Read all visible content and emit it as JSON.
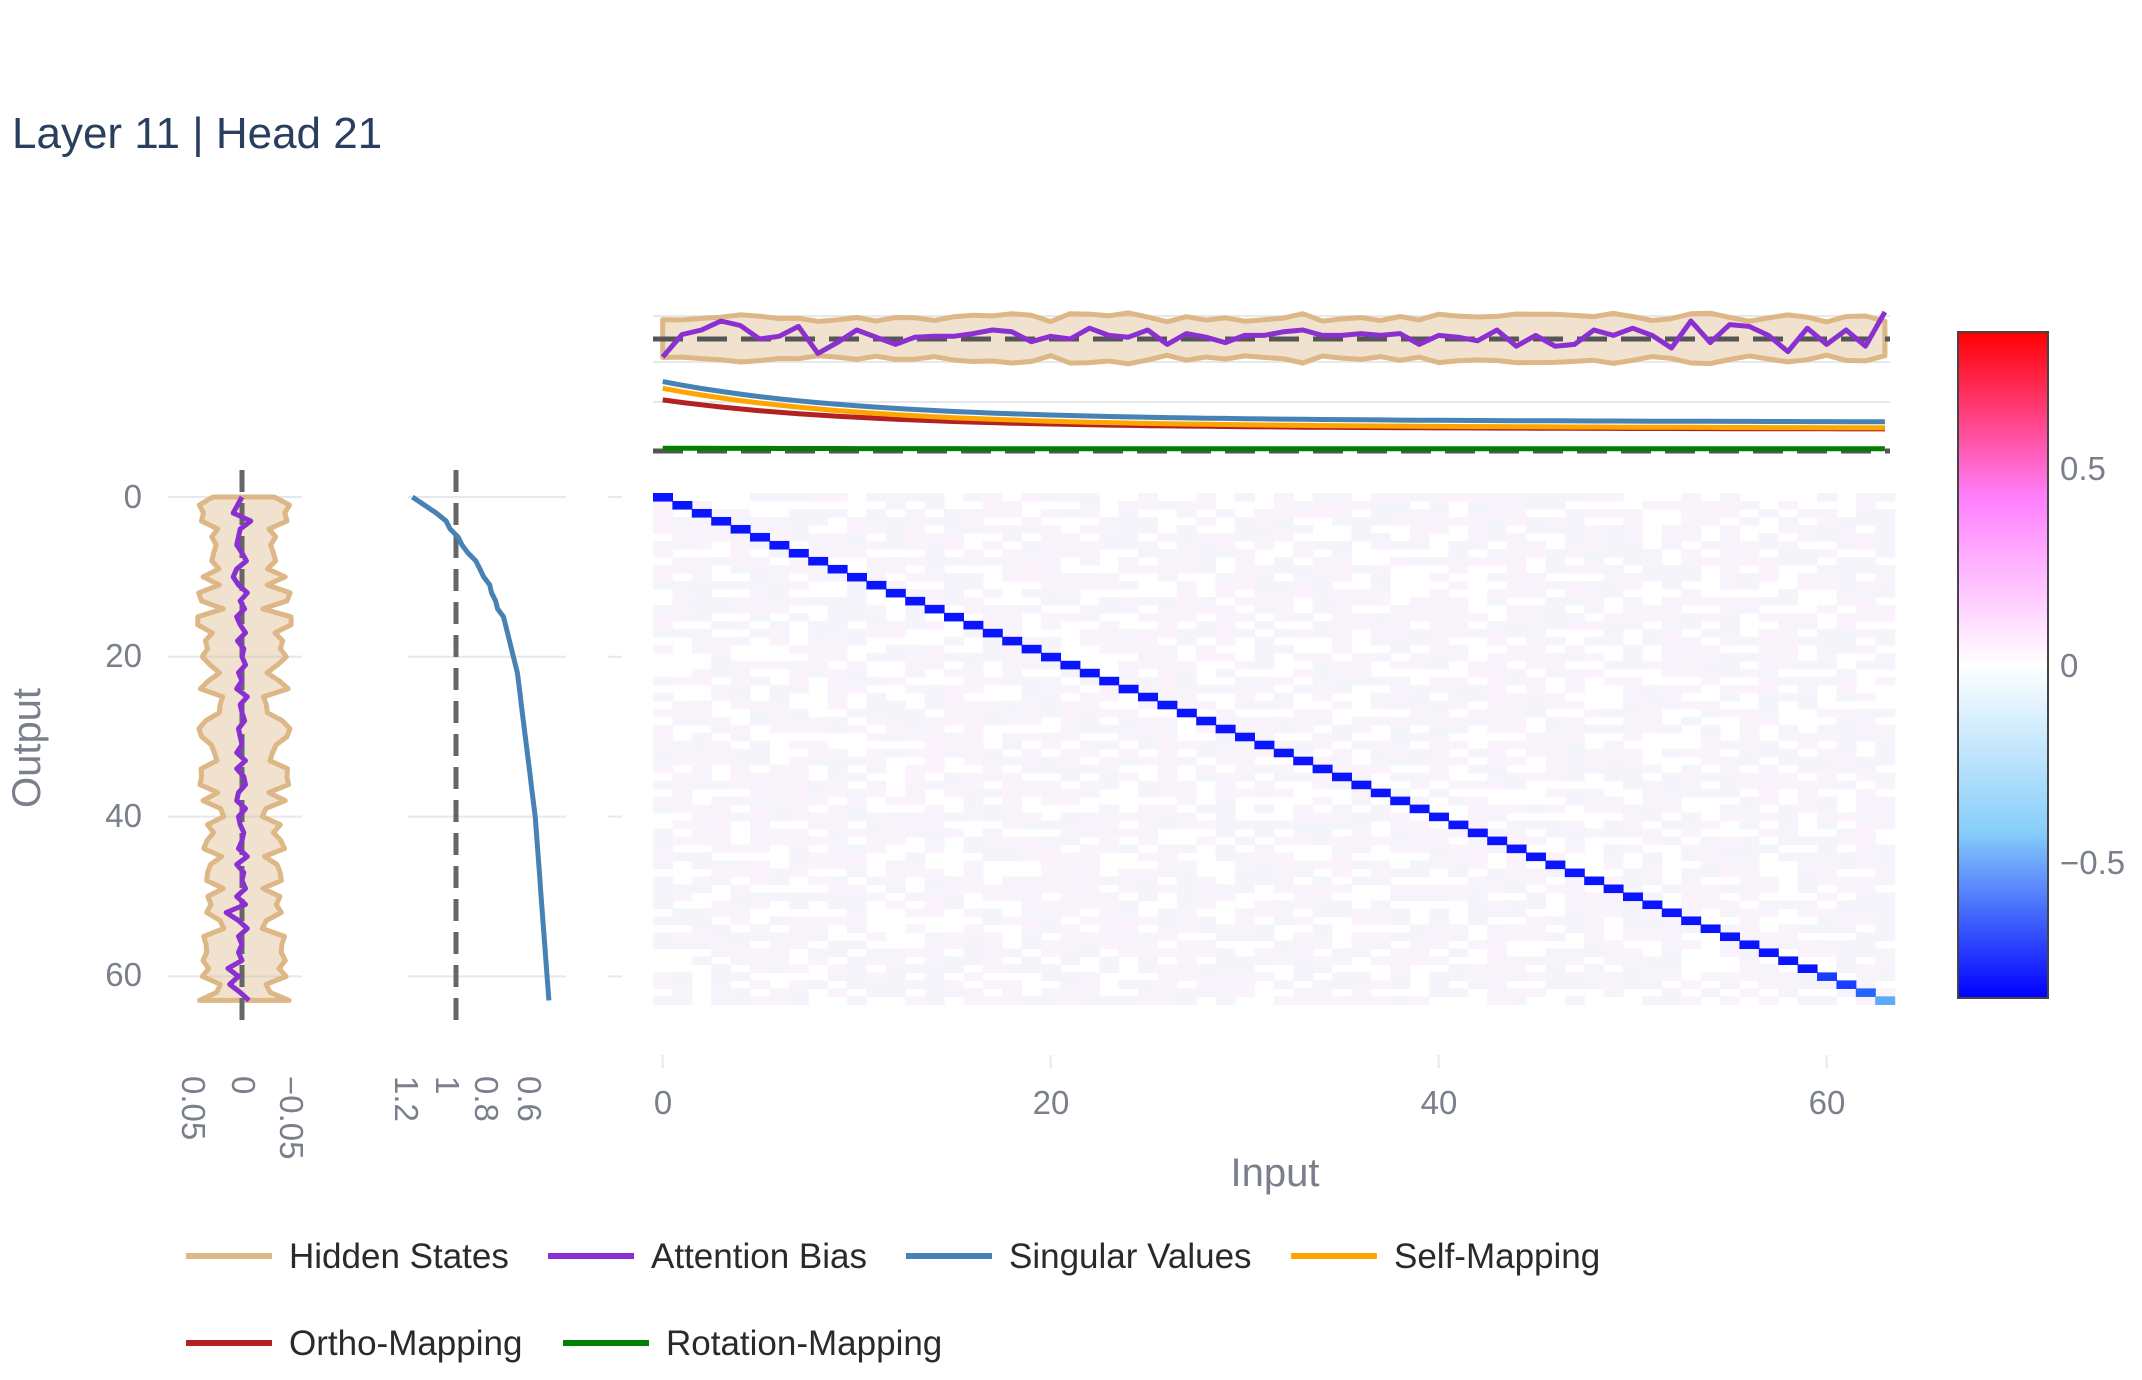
{
  "title": "Layer 11 | Head 21",
  "chart_data": {
    "type": "heatmap",
    "title": "Layer 11 | Head 21",
    "xlabel": "Input",
    "ylabel": "Output",
    "matrix_size": 64,
    "diagonal_value": -0.85,
    "diagonal_end_values": [
      -0.85,
      -0.8,
      -0.75,
      -0.6
    ],
    "off_diagonal_typical": 0.01,
    "x_ticks": [
      "0",
      "20",
      "40",
      "60"
    ],
    "y_ticks": [
      "0",
      "20",
      "40",
      "60"
    ],
    "colorscale": [
      "#0000ff",
      "#87cefa",
      "#ffffff",
      "#ff80ff",
      "#ff0000"
    ],
    "colorbar": {
      "range": [
        -0.85,
        0.85
      ],
      "tick_labels": [
        "0.5",
        "0",
        "−0.5"
      ]
    },
    "left_panel_1": {
      "tick_labels": [
        "0.05",
        "0",
        "−0.05"
      ],
      "reference_value": 0,
      "hidden_states_range": [
        -0.05,
        0.05
      ],
      "attention_bias": [
        0.0,
        0.005,
        0.01,
        -0.01,
        0.002,
        0.004,
        0.006,
        0.0,
        -0.005,
        0.006,
        0.01,
        0.004,
        -0.006,
        0.002,
        -0.003,
        0.006,
        0.002,
        -0.004,
        0.005,
        -0.002,
        0.0,
        -0.004,
        0.004,
        0.0,
        0.006,
        -0.006,
        0.002,
        0.0,
        -0.003,
        0.004,
        0.002,
        0.0,
        0.006,
        -0.004,
        0.006,
        -0.002,
        -0.004,
        0.004,
        0.006,
        -0.004,
        0.004,
        0.002,
        -0.002,
        0.0,
        0.004,
        -0.006,
        0.006,
        -0.002,
        0.0,
        -0.004,
        0.006,
        -0.004,
        0.018,
        0.004,
        -0.006,
        0.004,
        0.0,
        0.004,
        0.0,
        0.016,
        0.004,
        0.014,
        0.002,
        -0.008
      ]
    },
    "left_panel_2": {
      "tick_labels": [
        "1.2",
        "1",
        "0.8",
        "0.6"
      ],
      "reference_value": 1,
      "singular_values": [
        1.22,
        1.16,
        1.1,
        1.05,
        1.03,
        0.99,
        0.97,
        0.94,
        0.9,
        0.88,
        0.86,
        0.83,
        0.82,
        0.8,
        0.79,
        0.76,
        0.75,
        0.74,
        0.73,
        0.72,
        0.71,
        0.7,
        0.69,
        0.685,
        0.68,
        0.675,
        0.67,
        0.665,
        0.66,
        0.655,
        0.65,
        0.645,
        0.64,
        0.635,
        0.63,
        0.625,
        0.62,
        0.615,
        0.61,
        0.605,
        0.6,
        0.597,
        0.594,
        0.591,
        0.588,
        0.585,
        0.582,
        0.579,
        0.576,
        0.573,
        0.57,
        0.567,
        0.564,
        0.561,
        0.558,
        0.555,
        0.552,
        0.549,
        0.546,
        0.543,
        0.54,
        0.537,
        0.534,
        0.531
      ]
    },
    "top_panel_1": {
      "reference_value": 0,
      "attention_bias": [
        -0.02,
        0.005,
        0.01,
        0.02,
        0.015,
        0.0,
        0.003,
        0.014,
        -0.016,
        -0.004,
        0.01,
        0.002,
        -0.006,
        0.002,
        0.003,
        0.003,
        0.006,
        0.01,
        0.008,
        -0.003,
        0.003,
        0.0,
        0.012,
        0.004,
        0.002,
        0.01,
        -0.006,
        0.006,
        0.002,
        -0.004,
        0.004,
        0.004,
        0.008,
        0.01,
        0.004,
        0.004,
        0.006,
        0.004,
        0.006,
        -0.006,
        0.004,
        0.002,
        -0.002,
        0.01,
        -0.008,
        0.004,
        -0.008,
        -0.006,
        0.01,
        0.004,
        0.012,
        0.004,
        -0.01,
        0.02,
        -0.004,
        0.016,
        0.014,
        0.004,
        -0.014,
        0.012,
        -0.006,
        0.01,
        -0.008,
        0.03
      ]
    },
    "top_panel_2": {
      "reference_value": 0,
      "series": [
        {
          "name": "Singular Values",
          "start": 1.22,
          "end": 0.53
        },
        {
          "name": "Self-Mapping",
          "start": 1.1,
          "end": 0.42
        },
        {
          "name": "Ortho-Mapping",
          "start": 0.9,
          "end": 0.4
        },
        {
          "name": "Rotation-Mapping",
          "start": 0.05,
          "end": 0.04
        }
      ]
    },
    "legend": {
      "placement": "bottom",
      "entries": [
        {
          "name": "Hidden States",
          "color": "#ddb786"
        },
        {
          "name": "Attention Bias",
          "color": "#8b30d0"
        },
        {
          "name": "Singular Values",
          "color": "#4682b4"
        },
        {
          "name": "Self-Mapping",
          "color": "#ffa500"
        },
        {
          "name": "Ortho-Mapping",
          "color": "#b22222"
        },
        {
          "name": "Rotation-Mapping",
          "color": "#008000"
        }
      ]
    }
  }
}
